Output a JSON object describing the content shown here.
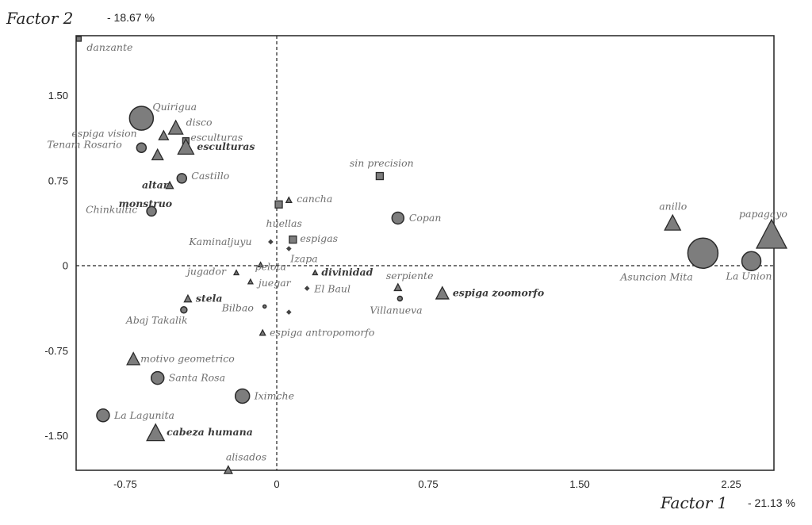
{
  "chart_data": {
    "type": "scatter",
    "xaxis": {
      "title": "Factor 1",
      "percent": "21.13 %",
      "ticks": [
        "-0.75",
        "0",
        "0.75",
        "1.50",
        "2.25"
      ],
      "range": [
        -1.0,
        2.5
      ]
    },
    "yaxis": {
      "title": "Factor 2",
      "percent": "18.67 %",
      "ticks": [
        "1.50",
        "0.75",
        "0",
        "-0.75",
        "-1.50"
      ],
      "range": [
        -1.8,
        2.05
      ]
    },
    "reference_lines": "dashed at x=0 and y=0",
    "points": [
      {
        "label": "danzante",
        "x": -0.98,
        "y": 2.0,
        "marker": "square",
        "size": 6,
        "bold": false
      },
      {
        "label": "Quirigua",
        "x": -0.67,
        "y": 1.3,
        "marker": "circle",
        "size": 30,
        "bold": false
      },
      {
        "label": "disco",
        "x": -0.5,
        "y": 1.22,
        "marker": "triangle",
        "size": 18,
        "bold": false
      },
      {
        "label": "espiga vision",
        "x": -0.56,
        "y": 1.15,
        "marker": "triangle",
        "size": 12,
        "bold": false
      },
      {
        "label": "esculturas",
        "x": -0.45,
        "y": 1.1,
        "marker": "square",
        "size": 8,
        "bold": false
      },
      {
        "label": "esculturas",
        "x": -0.45,
        "y": 1.05,
        "marker": "triangle",
        "size": 20,
        "bold": true
      },
      {
        "label": "Tenam Rosario",
        "x": -0.67,
        "y": 1.04,
        "marker": "circle",
        "size": 12,
        "bold": false
      },
      {
        "label": "",
        "x": -0.59,
        "y": 0.98,
        "marker": "triangle",
        "size": 14,
        "bold": false
      },
      {
        "label": "altar",
        "x": -0.53,
        "y": 0.71,
        "marker": "triangle",
        "size": 9,
        "bold": true
      },
      {
        "label": "Castillo",
        "x": -0.47,
        "y": 0.77,
        "marker": "circle",
        "size": 12,
        "bold": false
      },
      {
        "label": "monstruo",
        "x": -0.5,
        "y": 0.6,
        "marker": "none",
        "size": 0,
        "bold": true
      },
      {
        "label": "Chinkultic",
        "x": -0.62,
        "y": 0.48,
        "marker": "circle",
        "size": 12,
        "bold": false
      },
      {
        "label": "sin precision",
        "x": 0.51,
        "y": 0.79,
        "marker": "square",
        "size": 9,
        "bold": false
      },
      {
        "label": "cancha",
        "x": 0.06,
        "y": 0.58,
        "marker": "triangle",
        "size": 7,
        "bold": false
      },
      {
        "label": "huellas",
        "x": 0.01,
        "y": 0.54,
        "marker": "square",
        "size": 9,
        "bold": false
      },
      {
        "label": "Copan",
        "x": 0.6,
        "y": 0.42,
        "marker": "circle",
        "size": 15,
        "bold": false
      },
      {
        "label": "espigas",
        "x": 0.08,
        "y": 0.23,
        "marker": "square",
        "size": 9,
        "bold": false
      },
      {
        "label": "Kaminaljuyu",
        "x": -0.03,
        "y": 0.21,
        "marker": "diamond",
        "size": 3,
        "bold": false
      },
      {
        "label": "Izapa",
        "x": 0.06,
        "y": 0.15,
        "marker": "diamond",
        "size": 3,
        "bold": false
      },
      {
        "label": "pelota",
        "x": -0.08,
        "y": 0.01,
        "marker": "triangle",
        "size": 6,
        "bold": false
      },
      {
        "label": "jugador",
        "x": -0.2,
        "y": -0.06,
        "marker": "triangle",
        "size": 6,
        "bold": false
      },
      {
        "label": "divinidad",
        "x": 0.19,
        "y": -0.06,
        "marker": "triangle",
        "size": 6,
        "bold": true
      },
      {
        "label": "juegar",
        "x": -0.13,
        "y": -0.14,
        "marker": "triangle",
        "size": 6,
        "bold": false
      },
      {
        "label": "El Baul",
        "x": 0.15,
        "y": -0.2,
        "marker": "diamond",
        "size": 3,
        "bold": false
      },
      {
        "label": "serpiente",
        "x": 0.6,
        "y": -0.19,
        "marker": "triangle",
        "size": 9,
        "bold": false
      },
      {
        "label": "Villanueva",
        "x": 0.61,
        "y": -0.29,
        "marker": "circle",
        "size": 6,
        "bold": false
      },
      {
        "label": "espiga zoomorfo",
        "x": 0.82,
        "y": -0.24,
        "marker": "triangle",
        "size": 16,
        "bold": true
      },
      {
        "label": "stela",
        "x": -0.44,
        "y": -0.29,
        "marker": "triangle",
        "size": 9,
        "bold": true
      },
      {
        "label": "Bilbao",
        "x": -0.06,
        "y": -0.36,
        "marker": "circle",
        "size": 4,
        "bold": false
      },
      {
        "label": "",
        "x": 0.06,
        "y": -0.41,
        "marker": "diamond",
        "size": 3,
        "bold": false
      },
      {
        "label": "Abaj Takalik",
        "x": -0.46,
        "y": -0.39,
        "marker": "circle",
        "size": 8,
        "bold": false
      },
      {
        "label": "espiga antropomorfo",
        "x": -0.07,
        "y": -0.59,
        "marker": "triangle",
        "size": 7,
        "bold": false
      },
      {
        "label": "motivo geometrico",
        "x": -0.71,
        "y": -0.82,
        "marker": "triangle",
        "size": 16,
        "bold": false
      },
      {
        "label": "Santa Rosa",
        "x": -0.59,
        "y": -0.99,
        "marker": "circle",
        "size": 16,
        "bold": false
      },
      {
        "label": "Iximche",
        "x": -0.17,
        "y": -1.15,
        "marker": "circle",
        "size": 18,
        "bold": false
      },
      {
        "label": "La Lagunita",
        "x": -0.86,
        "y": -1.32,
        "marker": "circle",
        "size": 16,
        "bold": false
      },
      {
        "label": "cabeza humana",
        "x": -0.6,
        "y": -1.47,
        "marker": "triangle",
        "size": 22,
        "bold": true
      },
      {
        "label": "alisados",
        "x": -0.24,
        "y": -1.8,
        "marker": "triangle",
        "size": 10,
        "bold": false
      },
      {
        "label": "anillo",
        "x": 1.96,
        "y": 0.38,
        "marker": "triangle",
        "size": 20,
        "bold": false
      },
      {
        "label": "papagayo",
        "x": 2.45,
        "y": 0.28,
        "marker": "triangle",
        "size": 38,
        "bold": false
      },
      {
        "label": "Asuncion Mita",
        "x": 2.11,
        "y": 0.11,
        "marker": "circle",
        "size": 38,
        "bold": false
      },
      {
        "label": "La Union",
        "x": 2.35,
        "y": 0.04,
        "marker": "circle",
        "size": 24,
        "bold": false
      }
    ]
  }
}
